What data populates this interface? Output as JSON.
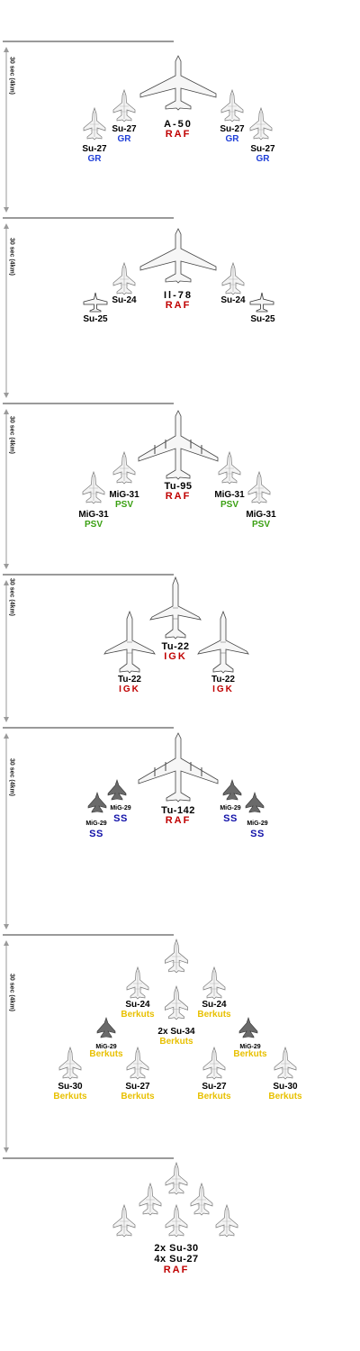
{
  "colors": {
    "line": "#9a9a9a",
    "GR": "#1f3fd8",
    "RAF": "#c00000",
    "PSV": "#3aa012",
    "IGK": "#c00000",
    "SS": "#1010a8",
    "Berkuts": "#e8c000"
  },
  "groups": [
    {
      "interval": "30 sec (4km)",
      "aircraft": [
        {
          "name": "A-50",
          "unit": "RAF",
          "kind": "transport"
        },
        {
          "name": "Su-27",
          "unit": "GR",
          "kind": "fighter"
        },
        {
          "name": "Su-27",
          "unit": "GR",
          "kind": "fighter"
        },
        {
          "name": "Su-27",
          "unit": "GR",
          "kind": "fighter"
        },
        {
          "name": "Su-27",
          "unit": "GR",
          "kind": "fighter"
        }
      ]
    },
    {
      "interval": "30 sec (4km)",
      "aircraft": [
        {
          "name": "Il-78",
          "unit": "RAF",
          "kind": "transport"
        },
        {
          "name": "Su-24",
          "unit": "",
          "kind": "fighter"
        },
        {
          "name": "Su-24",
          "unit": "",
          "kind": "fighter"
        },
        {
          "name": "Su-25",
          "unit": "",
          "kind": "attack"
        },
        {
          "name": "Su-25",
          "unit": "",
          "kind": "attack"
        }
      ]
    },
    {
      "interval": "30 sec (4km)",
      "aircraft": [
        {
          "name": "Tu-95",
          "unit": "RAF",
          "kind": "bomber"
        },
        {
          "name": "MiG-31",
          "unit": "PSV",
          "kind": "fighter"
        },
        {
          "name": "MiG-31",
          "unit": "PSV",
          "kind": "fighter"
        },
        {
          "name": "MiG-31",
          "unit": "PSV",
          "kind": "fighter"
        },
        {
          "name": "MiG-31",
          "unit": "PSV",
          "kind": "fighter"
        }
      ]
    },
    {
      "interval": "30 sec (4km)",
      "aircraft": [
        {
          "name": "Tu-22",
          "unit": "IGK",
          "kind": "swing"
        },
        {
          "name": "Tu-22",
          "unit": "IGK",
          "kind": "swing"
        },
        {
          "name": "Tu-22",
          "unit": "IGK",
          "kind": "swing"
        }
      ]
    },
    {
      "interval": "30 sec (4km)",
      "aircraft": [
        {
          "name": "Tu-142",
          "unit": "RAF",
          "kind": "bomber"
        },
        {
          "name": "MiG-29",
          "unit": "SS",
          "kind": "mig"
        },
        {
          "name": "MiG-29",
          "unit": "SS",
          "kind": "mig"
        },
        {
          "name": "MiG-29",
          "unit": "SS",
          "kind": "mig"
        },
        {
          "name": "MiG-29",
          "unit": "SS",
          "kind": "mig"
        }
      ]
    },
    {
      "interval": "30 sec (4km)",
      "aircraft": [
        {
          "name": "",
          "unit": "",
          "kind": "fighter"
        },
        {
          "name": "Su-24",
          "unit": "Berkuts",
          "kind": "fighter"
        },
        {
          "name": "Su-24",
          "unit": "Berkuts",
          "kind": "fighter"
        },
        {
          "name": "2x Su-34",
          "unit": "Berkuts",
          "kind": "fighter"
        },
        {
          "name": "MiG-29",
          "unit": "Berkuts",
          "kind": "mig"
        },
        {
          "name": "MiG-29",
          "unit": "Berkuts",
          "kind": "mig"
        },
        {
          "name": "Su-30",
          "unit": "Berkuts",
          "kind": "fighter"
        },
        {
          "name": "Su-27",
          "unit": "Berkuts",
          "kind": "fighter"
        },
        {
          "name": "Su-27",
          "unit": "Berkuts",
          "kind": "fighter"
        },
        {
          "name": "Su-30",
          "unit": "Berkuts",
          "kind": "fighter"
        }
      ]
    },
    {
      "interval": "",
      "aircraft": [
        {
          "name": "2x Su-30",
          "unit": "",
          "kind": "fighter"
        },
        {
          "name": "4x Su-27",
          "unit": "RAF",
          "kind": "fighter"
        }
      ]
    }
  ]
}
